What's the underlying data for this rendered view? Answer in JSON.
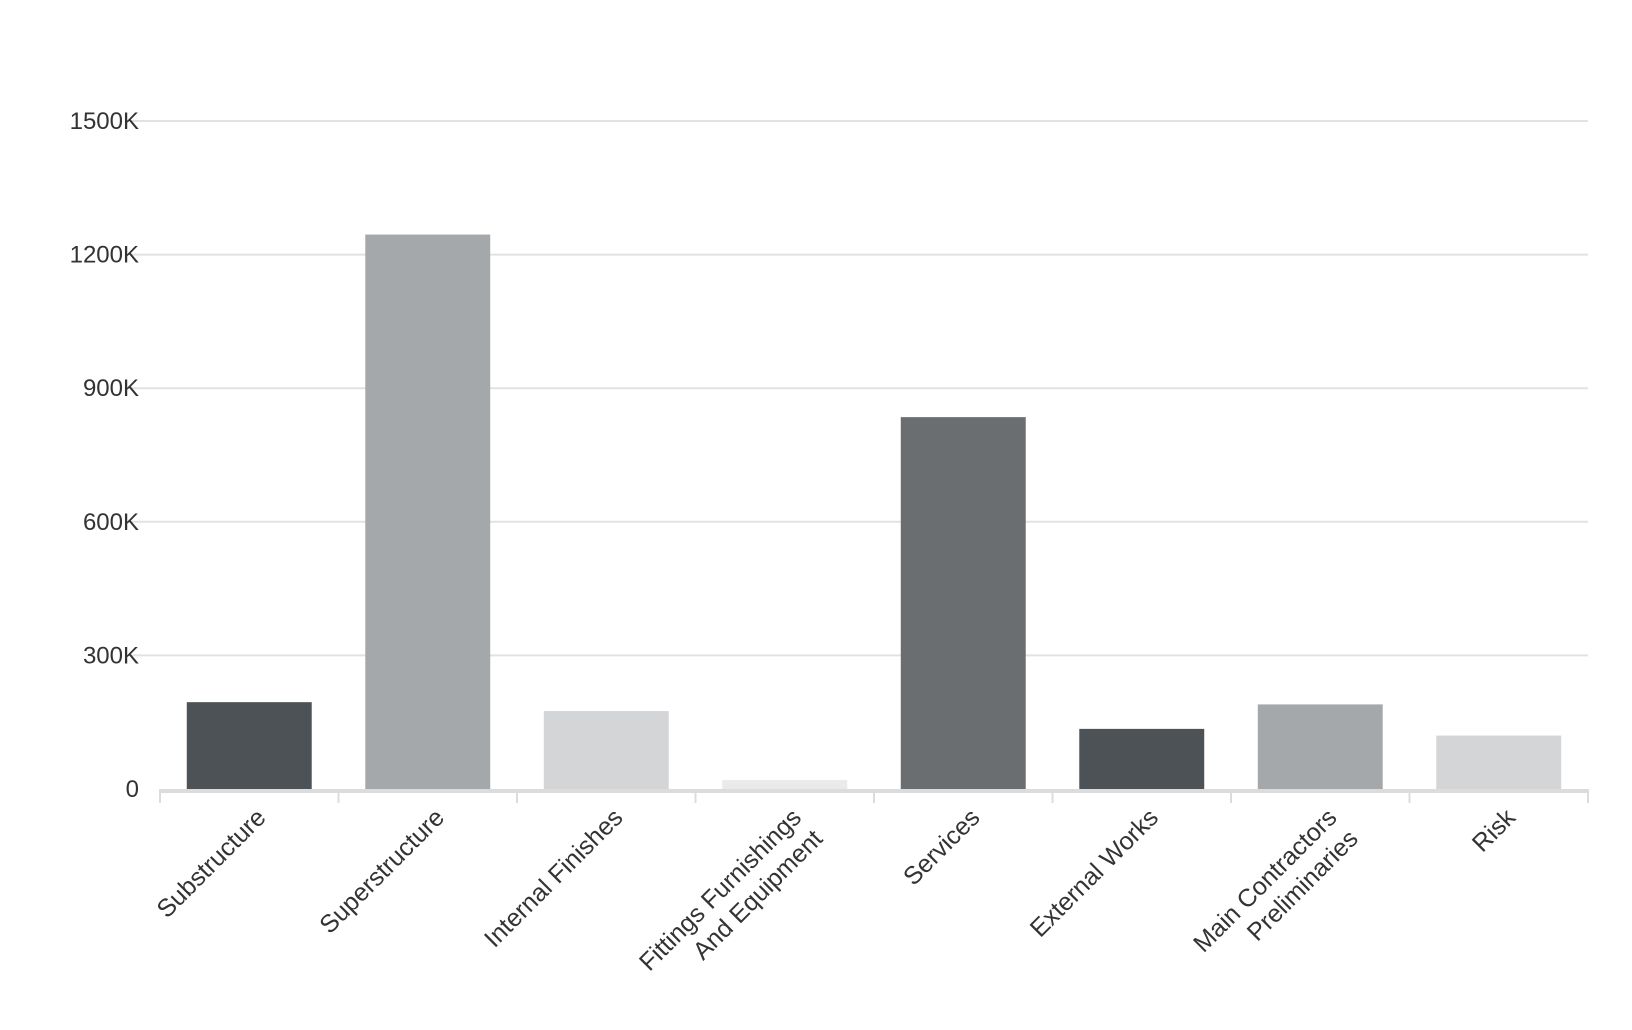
{
  "chart_data": {
    "type": "bar",
    "title": "",
    "xlabel": "",
    "ylabel": "",
    "categories": [
      [
        "Substructure"
      ],
      [
        "Superstructure"
      ],
      [
        "Internal Finishes"
      ],
      [
        "Fittings Furnishings",
        "And Equipment"
      ],
      [
        "Services"
      ],
      [
        "External Works"
      ],
      [
        "Main Contractors",
        "Preliminaries"
      ],
      [
        "Risk"
      ]
    ],
    "values": [
      195000,
      1245000,
      175000,
      20000,
      835000,
      135000,
      190000,
      120000
    ],
    "colors": [
      "#4d5256",
      "#a5a8aa",
      "#d4d5d7",
      "#eaeaeb",
      "#6a6e71",
      "#4d5256",
      "#a5a8aa",
      "#d4d5d7"
    ],
    "ylim": [
      0,
      1500000
    ],
    "yticks": [
      0,
      300000,
      600000,
      900000,
      1200000,
      1500000
    ],
    "ytick_labels": [
      "0",
      "300K",
      "600K",
      "900K",
      "1200K",
      "1500K"
    ],
    "grid": true,
    "legend": "none"
  }
}
